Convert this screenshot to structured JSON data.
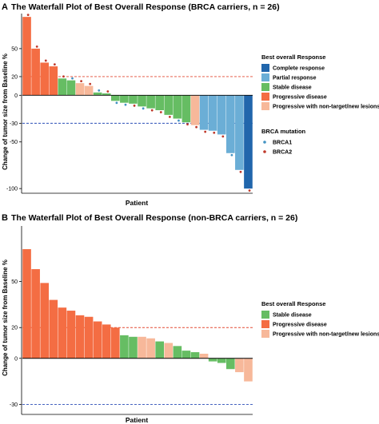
{
  "colors": {
    "complete_response": "#2166ac",
    "partial_response": "#6baed6",
    "stable_disease": "#66bd63",
    "progressive_disease": "#f46d43",
    "progressive_nontarget": "#f7b89a",
    "brca1": "#4393c3",
    "brca2": "#c0392b",
    "ref_line_pos": "#e34a33",
    "ref_line_neg": "#2b4fb8"
  },
  "chart_data": [
    {
      "type": "bar",
      "panel_letter": "A",
      "title": "The Waterfall Plot of Best Overall Response (BRCA carriers, n = 26)",
      "xlabel": "Patient",
      "ylabel": "Change of tumor size from Baseline %",
      "yticks": [
        "50",
        "20",
        "0",
        "-30",
        "-50",
        "-100"
      ],
      "ytick_values": [
        50,
        20,
        0,
        -30,
        -50,
        -100
      ],
      "ylim": [
        -105,
        85
      ],
      "reference_lines": [
        20,
        -30
      ],
      "grid": false,
      "legend_placement": "right",
      "legend_title": "Best overall Response",
      "legend_items": [
        {
          "label": "Complete response",
          "category": "complete_response"
        },
        {
          "label": "Partial response",
          "category": "partial_response"
        },
        {
          "label": "Stable disease",
          "category": "stable_disease"
        },
        {
          "label": "Progressive disease",
          "category": "progressive_disease"
        },
        {
          "label": "Progressive with non-target/new lesions",
          "category": "progressive_nontarget"
        }
      ],
      "mutation_legend_title": "BRCA mutation",
      "mutation_legend_items": [
        {
          "label": "BRCA1",
          "key": "brca1"
        },
        {
          "label": "BRCA2",
          "key": "brca2"
        }
      ],
      "bars": [
        {
          "value": 84,
          "category": "progressive_disease",
          "mutation": "brca2"
        },
        {
          "value": 50,
          "category": "progressive_disease",
          "mutation": "brca2"
        },
        {
          "value": 35,
          "category": "progressive_disease",
          "mutation": "brca2"
        },
        {
          "value": 31,
          "category": "progressive_disease",
          "mutation": "brca2"
        },
        {
          "value": 18,
          "category": "stable_disease",
          "mutation": "brca2"
        },
        {
          "value": 16,
          "category": "stable_disease",
          "mutation": "brca1"
        },
        {
          "value": 13,
          "category": "progressive_nontarget",
          "mutation": "brca2"
        },
        {
          "value": 10,
          "category": "progressive_nontarget",
          "mutation": "brca2"
        },
        {
          "value": 3,
          "category": "stable_disease",
          "mutation": "brca1"
        },
        {
          "value": 2,
          "category": "stable_disease",
          "mutation": "brca2"
        },
        {
          "value": -6,
          "category": "stable_disease",
          "mutation": "brca1"
        },
        {
          "value": -8,
          "category": "stable_disease",
          "mutation": "brca1"
        },
        {
          "value": -9,
          "category": "stable_disease",
          "mutation": "brca2"
        },
        {
          "value": -12,
          "category": "stable_disease",
          "mutation": "brca1"
        },
        {
          "value": -14,
          "category": "stable_disease",
          "mutation": "brca2"
        },
        {
          "value": -16,
          "category": "stable_disease",
          "mutation": "brca2"
        },
        {
          "value": -21,
          "category": "stable_disease",
          "mutation": "brca2"
        },
        {
          "value": -25,
          "category": "stable_disease",
          "mutation": "brca1"
        },
        {
          "value": -29,
          "category": "stable_disease",
          "mutation": "brca2"
        },
        {
          "value": -32,
          "category": "progressive_nontarget",
          "mutation": "brca2"
        },
        {
          "value": -37,
          "category": "partial_response",
          "mutation": "brca2"
        },
        {
          "value": -38,
          "category": "partial_response",
          "mutation": "brca2"
        },
        {
          "value": -42,
          "category": "partial_response",
          "mutation": "brca2"
        },
        {
          "value": -62,
          "category": "partial_response",
          "mutation": "brca1"
        },
        {
          "value": -80,
          "category": "partial_response",
          "mutation": "brca2"
        },
        {
          "value": -100,
          "category": "complete_response",
          "mutation": "brca2"
        }
      ]
    },
    {
      "type": "bar",
      "panel_letter": "B",
      "title": "The Waterfall Plot of Best Overall Response (non-BRCA carriers, n = 26)",
      "xlabel": "Patient",
      "ylabel": "Change of tumor size from Baseline %",
      "yticks": [
        "50",
        "20",
        "0",
        "-30"
      ],
      "ytick_values": [
        50,
        20,
        0,
        -30
      ],
      "ylim": [
        -37,
        84
      ],
      "reference_lines": [
        20,
        -30
      ],
      "grid": false,
      "legend_placement": "right",
      "legend_title": "Best overall Response",
      "legend_items": [
        {
          "label": "Stable disease",
          "category": "stable_disease"
        },
        {
          "label": "Progressive disease",
          "category": "progressive_disease"
        },
        {
          "label": "Progressive with non-target/new lesions",
          "category": "progressive_nontarget"
        }
      ],
      "bars": [
        {
          "value": 71,
          "category": "progressive_disease"
        },
        {
          "value": 58,
          "category": "progressive_disease"
        },
        {
          "value": 49,
          "category": "progressive_disease"
        },
        {
          "value": 38,
          "category": "progressive_disease"
        },
        {
          "value": 33,
          "category": "progressive_disease"
        },
        {
          "value": 31,
          "category": "progressive_disease"
        },
        {
          "value": 28,
          "category": "progressive_disease"
        },
        {
          "value": 27,
          "category": "progressive_disease"
        },
        {
          "value": 24,
          "category": "progressive_disease"
        },
        {
          "value": 22,
          "category": "progressive_disease"
        },
        {
          "value": 20,
          "category": "progressive_disease"
        },
        {
          "value": 15,
          "category": "stable_disease"
        },
        {
          "value": 14,
          "category": "stable_disease"
        },
        {
          "value": 14,
          "category": "progressive_nontarget"
        },
        {
          "value": 13,
          "category": "progressive_nontarget"
        },
        {
          "value": 11,
          "category": "stable_disease"
        },
        {
          "value": 10,
          "category": "progressive_nontarget"
        },
        {
          "value": 8,
          "category": "stable_disease"
        },
        {
          "value": 5,
          "category": "stable_disease"
        },
        {
          "value": 4,
          "category": "stable_disease"
        },
        {
          "value": 3,
          "category": "progressive_nontarget"
        },
        {
          "value": -2,
          "category": "stable_disease"
        },
        {
          "value": -3,
          "category": "stable_disease"
        },
        {
          "value": -7,
          "category": "stable_disease"
        },
        {
          "value": -9,
          "category": "progressive_nontarget"
        },
        {
          "value": -15,
          "category": "progressive_nontarget"
        }
      ]
    }
  ]
}
